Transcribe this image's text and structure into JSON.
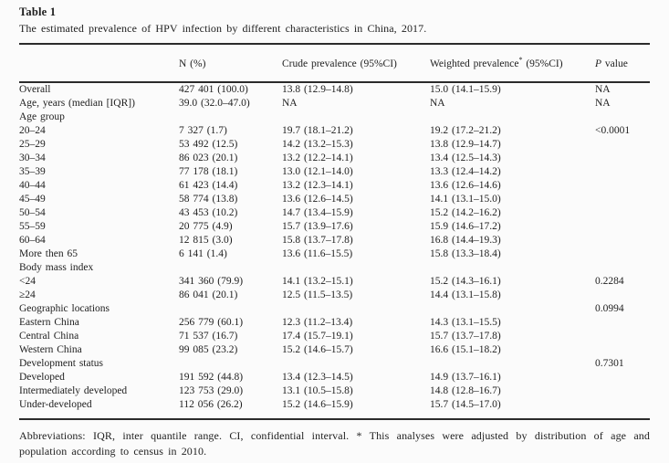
{
  "table": {
    "title": "Table 1",
    "caption": "The estimated prevalence of HPV infection by different characteristics in China, 2017.",
    "columns": {
      "characteristic": "",
      "n": "N (%)",
      "crude": "Crude prevalence (95%CI)",
      "weighted_main": "Weighted prevalence",
      "weighted_star": "*",
      "weighted_ci": " (95%CI)",
      "p_italic": "P",
      "p_rest": " value"
    },
    "rows": [
      {
        "label": "Overall",
        "n": "427 401 (100.0)",
        "crude": "13.8 (12.9–14.8)",
        "weighted": "15.0 (14.1–15.9)",
        "p": "NA"
      },
      {
        "label": "Age, years (median [IQR])",
        "n": "39.0 (32.0–47.0)",
        "crude": "NA",
        "weighted": "NA",
        "p": "NA"
      },
      {
        "label": "Age group",
        "n": "",
        "crude": "",
        "weighted": "",
        "p": ""
      },
      {
        "label": "20–24",
        "n": "7 327 (1.7)",
        "crude": "19.7 (18.1–21.2)",
        "weighted": "19.2 (17.2–21.2)",
        "p": "<0.0001"
      },
      {
        "label": "25–29",
        "n": "53 492 (12.5)",
        "crude": "14.2 (13.2–15.3)",
        "weighted": "13.8 (12.9–14.7)",
        "p": ""
      },
      {
        "label": "30–34",
        "n": "86 023 (20.1)",
        "crude": "13.2 (12.2–14.1)",
        "weighted": "13.4 (12.5–14.3)",
        "p": ""
      },
      {
        "label": "35–39",
        "n": "77 178 (18.1)",
        "crude": "13.0 (12.1–14.0)",
        "weighted": "13.3 (12.4–14.2)",
        "p": ""
      },
      {
        "label": "40–44",
        "n": "61 423 (14.4)",
        "crude": "13.2 (12.3–14.1)",
        "weighted": "13.6 (12.6–14.6)",
        "p": ""
      },
      {
        "label": "45–49",
        "n": "58 774 (13.8)",
        "crude": "13.6 (12.6–14.5)",
        "weighted": "14.1 (13.1–15.0)",
        "p": ""
      },
      {
        "label": "50–54",
        "n": "43 453 (10.2)",
        "crude": "14.7 (13.4–15.9)",
        "weighted": "15.2 (14.2–16.2)",
        "p": ""
      },
      {
        "label": "55–59",
        "n": "20 775 (4.9)",
        "crude": "15.7 (13.9–17.6)",
        "weighted": "15.9 (14.6–17.2)",
        "p": ""
      },
      {
        "label": "60–64",
        "n": "12 815 (3.0)",
        "crude": "15.8 (13.7–17.8)",
        "weighted": "16.8 (14.4–19.3)",
        "p": ""
      },
      {
        "label": "More then 65",
        "n": "6 141 (1.4)",
        "crude": "13.6 (11.6–15.5)",
        "weighted": "15.8 (13.3–18.4)",
        "p": ""
      },
      {
        "label": "Body mass index",
        "n": "",
        "crude": "",
        "weighted": "",
        "p": ""
      },
      {
        "label": "<24",
        "n": "341 360 (79.9)",
        "crude": "14.1 (13.2–15.1)",
        "weighted": "15.2 (14.3–16.1)",
        "p": "0.2284"
      },
      {
        "label": "≥24",
        "n": "86 041 (20.1)",
        "crude": "12.5 (11.5–13.5)",
        "weighted": "14.4 (13.1–15.8)",
        "p": ""
      },
      {
        "label": "Geographic locations",
        "n": "",
        "crude": "",
        "weighted": "",
        "p": "0.0994"
      },
      {
        "label": "Eastern China",
        "n": "256 779 (60.1)",
        "crude": "12.3 (11.2–13.4)",
        "weighted": "14.3 (13.1–15.5)",
        "p": ""
      },
      {
        "label": "Central China",
        "n": "71 537 (16.7)",
        "crude": "17.4 (15.7–19.1)",
        "weighted": "15.7 (13.7–17.8)",
        "p": ""
      },
      {
        "label": "Western China",
        "n": "99 085 (23.2)",
        "crude": "15.2 (14.6–15.7)",
        "weighted": "16.6 (15.1–18.2)",
        "p": ""
      },
      {
        "label": "Development status",
        "n": "",
        "crude": "",
        "weighted": "",
        "p": "0.7301"
      },
      {
        "label": "Developed",
        "n": "191 592 (44.8)",
        "crude": "13.4 (12.3–14.5)",
        "weighted": "14.9 (13.7–16.1)",
        "p": ""
      },
      {
        "label": "Intermediately developed",
        "n": "123 753 (29.0)",
        "crude": "13.1 (10.5–15.8)",
        "weighted": "14.8 (12.8–16.7)",
        "p": ""
      },
      {
        "label": "Under-developed",
        "n": "112 056 (26.2)",
        "crude": "15.2 (14.6–15.9)",
        "weighted": "15.7 (14.5–17.0)",
        "p": ""
      }
    ],
    "footnote": "Abbreviations: IQR, inter quantile range. CI, confidential interval. * This analyses were adjusted by distribution of age and population according to census in 2010."
  }
}
